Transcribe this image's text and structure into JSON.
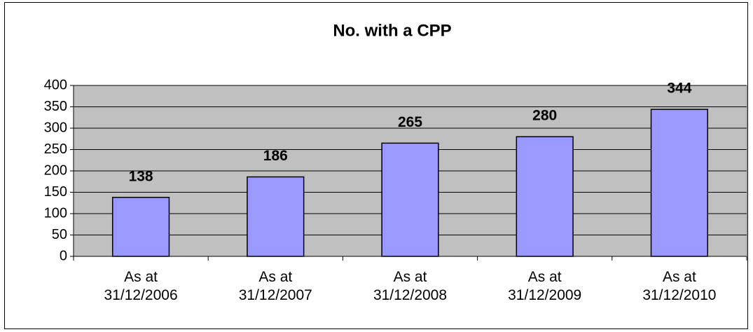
{
  "chart_data": {
    "type": "bar",
    "title": "No. with a CPP",
    "categories": [
      "As at 31/12/2006",
      "As at 31/12/2007",
      "As at 31/12/2008",
      "As at 31/12/2009",
      "As at 31/12/2010"
    ],
    "values": [
      138,
      186,
      265,
      280,
      344
    ],
    "color": "#9999ff",
    "plot_background": "#c0c0c0",
    "ylim": [
      0,
      400
    ],
    "yticks": [
      0,
      50,
      100,
      150,
      200,
      250,
      300,
      350,
      400
    ],
    "grid": true
  }
}
